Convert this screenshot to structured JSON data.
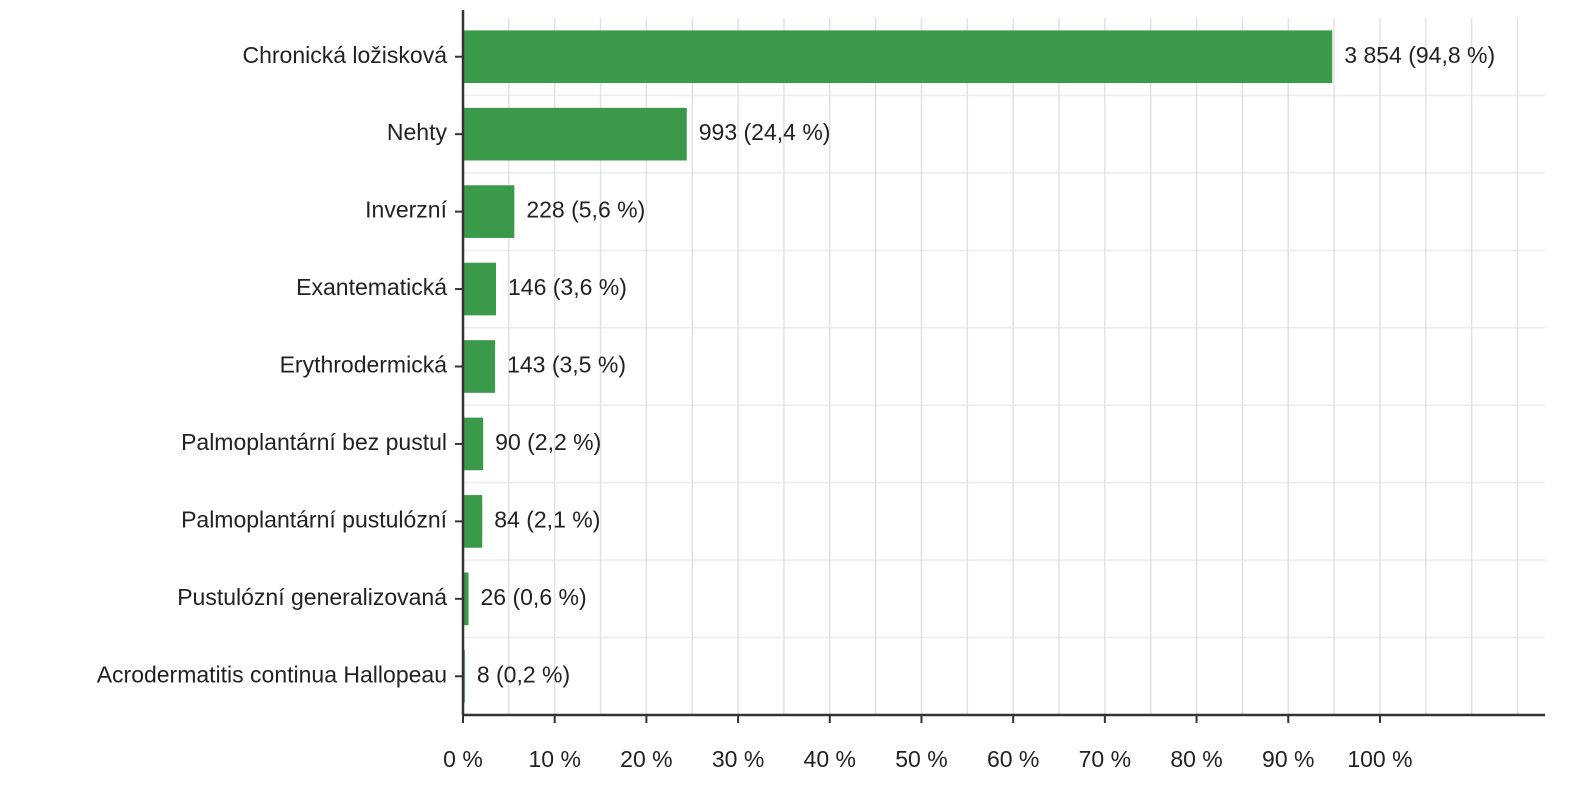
{
  "chart_data": {
    "type": "hbar",
    "categories": [
      "Chronická ložisková",
      "Nehty",
      "Inverzní",
      "Exantematická",
      "Erythrodermická",
      "Palmoplantární bez pustul",
      "Palmoplantární pustulózní",
      "Pustulózní generalizovaná",
      "Acrodermatitis continua Hallopeau"
    ],
    "values": [
      94.8,
      24.4,
      5.6,
      3.6,
      3.5,
      2.2,
      2.1,
      0.6,
      0.2
    ],
    "value_labels": [
      "3 854 (94,8 %)",
      "993 (24,4 %)",
      "228 (5,6 %)",
      "146 (3,6 %)",
      "143 (3,5 %)",
      "90 (2,2 %)",
      "84 (2,1 %)",
      "26 (0,6 %)",
      "8 (0,2 %)"
    ],
    "color": "#3a9a4a",
    "xlim": [
      0,
      118
    ],
    "xticks": [
      {
        "value": 0,
        "label": "0 %"
      },
      {
        "value": 10,
        "label": "10 %"
      },
      {
        "value": 20,
        "label": "20 %"
      },
      {
        "value": 30,
        "label": "30 %"
      },
      {
        "value": 40,
        "label": "40 %"
      },
      {
        "value": 50,
        "label": "50 %"
      },
      {
        "value": 60,
        "label": "60 %"
      },
      {
        "value": 70,
        "label": "70 %"
      },
      {
        "value": 80,
        "label": "80 %"
      },
      {
        "value": 90,
        "label": "90 %"
      },
      {
        "value": 100,
        "label": "100 %"
      }
    ],
    "xgrid": [
      5,
      10,
      15,
      20,
      25,
      30,
      35,
      40,
      45,
      50,
      55,
      60,
      65,
      70,
      75,
      80,
      85,
      90,
      95,
      100,
      105,
      110,
      115
    ],
    "grid": true
  }
}
